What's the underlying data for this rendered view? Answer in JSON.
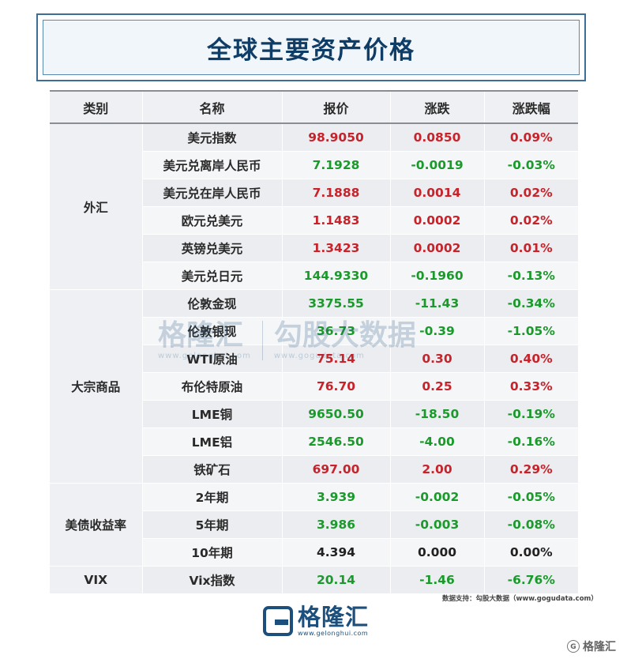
{
  "title": "全球主要资产价格",
  "headers": [
    "类别",
    "名称",
    "报价",
    "涨跌",
    "涨跌幅"
  ],
  "groups": [
    {
      "category": "外汇",
      "rows": [
        {
          "name": "美元指数",
          "price": "98.9050",
          "change": "0.0850",
          "pct": "0.09%",
          "price_color": "red",
          "color": "red"
        },
        {
          "name": "美元兑离岸人民币",
          "price": "7.1928",
          "change": "-0.0019",
          "pct": "-0.03%",
          "price_color": "green",
          "color": "green"
        },
        {
          "name": "美元兑在岸人民币",
          "price": "7.1888",
          "change": "0.0014",
          "pct": "0.02%",
          "price_color": "red",
          "color": "red"
        },
        {
          "name": "欧元兑美元",
          "price": "1.1483",
          "change": "0.0002",
          "pct": "0.02%",
          "price_color": "red",
          "color": "red"
        },
        {
          "name": "英镑兑美元",
          "price": "1.3423",
          "change": "0.0002",
          "pct": "0.01%",
          "price_color": "red",
          "color": "red"
        },
        {
          "name": "美元兑日元",
          "price": "144.9330",
          "change": "-0.1960",
          "pct": "-0.13%",
          "price_color": "green",
          "color": "green"
        }
      ]
    },
    {
      "category": "大宗商品",
      "rows": [
        {
          "name": "伦敦金现",
          "price": "3375.55",
          "change": "-11.43",
          "pct": "-0.34%",
          "price_color": "green",
          "color": "green"
        },
        {
          "name": "伦敦银现",
          "price": "36.73",
          "change": "-0.39",
          "pct": "-1.05%",
          "price_color": "green",
          "color": "green"
        },
        {
          "name": "WTI原油",
          "price": "75.14",
          "change": "0.30",
          "pct": "0.40%",
          "price_color": "red",
          "color": "red"
        },
        {
          "name": "布伦特原油",
          "price": "76.70",
          "change": "0.25",
          "pct": "0.33%",
          "price_color": "red",
          "color": "red"
        },
        {
          "name": "LME铜",
          "price": "9650.50",
          "change": "-18.50",
          "pct": "-0.19%",
          "price_color": "green",
          "color": "green"
        },
        {
          "name": "LME铝",
          "price": "2546.50",
          "change": "-4.00",
          "pct": "-0.16%",
          "price_color": "green",
          "color": "green"
        },
        {
          "name": "铁矿石",
          "price": "697.00",
          "change": "2.00",
          "pct": "0.29%",
          "price_color": "red",
          "color": "red"
        }
      ]
    },
    {
      "category": "美债收益率",
      "rows": [
        {
          "name": "2年期",
          "price": "3.939",
          "change": "-0.002",
          "pct": "-0.05%",
          "price_color": "green",
          "color": "green"
        },
        {
          "name": "5年期",
          "price": "3.986",
          "change": "-0.003",
          "pct": "-0.08%",
          "price_color": "green",
          "color": "green"
        },
        {
          "name": "10年期",
          "price": "4.394",
          "change": "0.000",
          "pct": "0.00%",
          "price_color": "black",
          "color": "black"
        }
      ]
    },
    {
      "category": "VIX",
      "rows": [
        {
          "name": "Vix指数",
          "price": "20.14",
          "change": "-1.46",
          "pct": "-6.76%",
          "price_color": "green",
          "color": "green"
        }
      ]
    }
  ],
  "source": "数据支持：勾股大数据（www.gogudata.com）",
  "logo": {
    "name": "格隆汇",
    "url": "www.gelonghui.com"
  },
  "watermark": {
    "left": "格隆汇",
    "left_url": "www.gelonghui.com",
    "right": "勾股大数据",
    "right_url": "www.gogudata.com"
  },
  "corner_label": "格隆汇",
  "colors": {
    "red": "#c8222a",
    "green": "#1b9a2c",
    "brand": "#1d4f7c"
  }
}
